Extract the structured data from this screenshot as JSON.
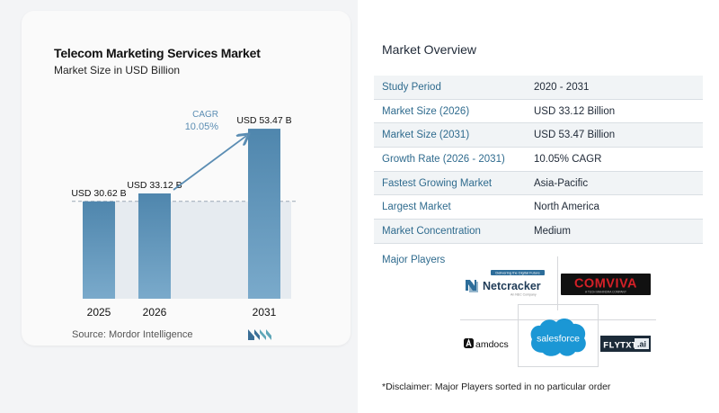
{
  "chart_data": {
    "type": "bar",
    "title": "Telecom Marketing Services Market",
    "subtitle": "Market Size in USD Billion",
    "categories": [
      "2025",
      "2026",
      "2031"
    ],
    "values": [
      30.62,
      33.12,
      53.47
    ],
    "value_labels": [
      "USD 30.62 B",
      "USD 33.12 B",
      "USD 53.47 B"
    ],
    "ylim": [
      0,
      60
    ],
    "grid": false,
    "annotations": {
      "cagr_label": "CAGR",
      "cagr_value": "10.05%"
    },
    "colors": {
      "bar_top": "#4f86ad",
      "bar_bottom": "#7aaacb",
      "shade": "#e6ebf0",
      "arrow": "#5b8db3",
      "cagr_text": "#5b8db3"
    }
  },
  "source": "Source: Mordor Intelligence",
  "overview": {
    "title": "Market Overview",
    "rows": [
      {
        "label": "Study Period",
        "value": "2020 - 2031"
      },
      {
        "label": "Market Size (2026)",
        "value": "USD 33.12 Billion"
      },
      {
        "label": "Market Size (2031)",
        "value": "USD 53.47 Billion"
      },
      {
        "label": "Growth Rate (2026 - 2031)",
        "value": "10.05% CAGR"
      },
      {
        "label": "Fastest Growing Market",
        "value": "Asia-Pacific"
      },
      {
        "label": "Largest Market",
        "value": "North America"
      },
      {
        "label": "Market Concentration",
        "value": "Medium"
      }
    ]
  },
  "players": {
    "label": "Major Players",
    "logos": {
      "netcracker": "Netcracker",
      "netcracker_tag": "Delivering the Digital Future",
      "netcracker_sub": "An NEC Company",
      "comviva": "COMVIVA",
      "comviva_sub": "A TECH MAHINDRA COMPANY",
      "amdocs": "amdocs",
      "salesforce": "salesforce",
      "flytxt": "FLYTXT",
      "flytxt_ai": ".ai"
    }
  },
  "disclaimer": "*Disclaimer: Major Players sorted in no particular order"
}
